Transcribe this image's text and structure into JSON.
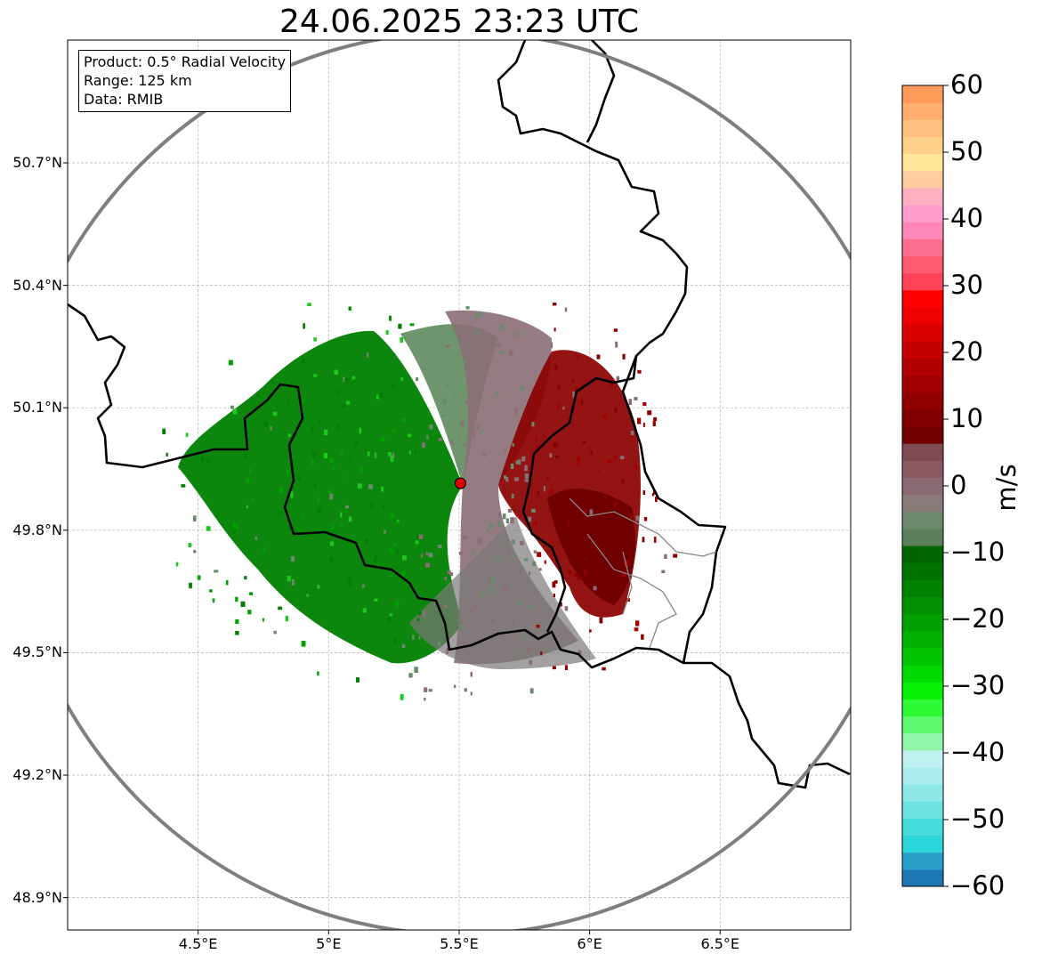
{
  "title": "24.06.2025 23:23 UTC",
  "info": {
    "product": "Product: 0.5° Radial Velocity",
    "range": "Range: 125 km",
    "data": "Data: RMIB"
  },
  "map": {
    "lon_range": [
      4.0,
      7.0
    ],
    "lat_range": [
      48.8,
      50.99
    ],
    "lon_ticks": [
      {
        "value": 4.5,
        "label": "4.5°E"
      },
      {
        "value": 5.0,
        "label": "5°E"
      },
      {
        "value": 5.5,
        "label": "5.5°E"
      },
      {
        "value": 6.0,
        "label": "6°E"
      },
      {
        "value": 6.5,
        "label": "6.5°E"
      }
    ],
    "lat_ticks": [
      {
        "value": 50.7,
        "label": "50.7°N"
      },
      {
        "value": 50.4,
        "label": "50.4°N"
      },
      {
        "value": 50.1,
        "label": "50.1°N"
      },
      {
        "value": 49.8,
        "label": "49.8°N"
      },
      {
        "value": 49.5,
        "label": "49.5°N"
      },
      {
        "value": 49.2,
        "label": "49.2°N"
      },
      {
        "value": 48.9,
        "label": "48.9°N"
      }
    ],
    "radar_site": {
      "lon": 5.505,
      "lat": 49.915
    },
    "gridlines": true
  },
  "colorbar": {
    "label": "m/s",
    "min": -60,
    "max": 60,
    "ticks": [
      {
        "value": 60,
        "label": "60"
      },
      {
        "value": 50,
        "label": "50"
      },
      {
        "value": 40,
        "label": "40"
      },
      {
        "value": 30,
        "label": "30"
      },
      {
        "value": 20,
        "label": "20"
      },
      {
        "value": 10,
        "label": "10"
      },
      {
        "value": 0,
        "label": "0"
      },
      {
        "value": -10,
        "label": "−10"
      },
      {
        "value": -20,
        "label": "−20"
      },
      {
        "value": -30,
        "label": "−30"
      },
      {
        "value": -40,
        "label": "−40"
      },
      {
        "value": -50,
        "label": "−50"
      },
      {
        "value": -60,
        "label": "−60"
      }
    ],
    "colors": [
      "#1f77b4",
      "#2a9fc9",
      "#2cd6d8",
      "#45dcdc",
      "#6ee2e2",
      "#8fe8e8",
      "#a9eded",
      "#c0f2f2",
      "#8ff5a8",
      "#5ef770",
      "#2ef935",
      "#05f005",
      "#00d800",
      "#00c400",
      "#00b000",
      "#00a000",
      "#009000",
      "#008200",
      "#007200",
      "#006400",
      "#5a7f5a",
      "#6b8a6b",
      "#8a7b7b",
      "#8a6a72",
      "#8a5a62",
      "#7f4a52",
      "#700000",
      "#800000",
      "#900000",
      "#a00000",
      "#b00000",
      "#c40000",
      "#d80000",
      "#ee0000",
      "#ff0000",
      "#ff4458",
      "#ff5a70",
      "#ff7090",
      "#ff88b8",
      "#ff9fd0",
      "#ffb0c0",
      "#ffcca0",
      "#ffe59a",
      "#ffd08a",
      "#ffc080",
      "#ffae70",
      "#ff9b5a"
    ]
  }
}
